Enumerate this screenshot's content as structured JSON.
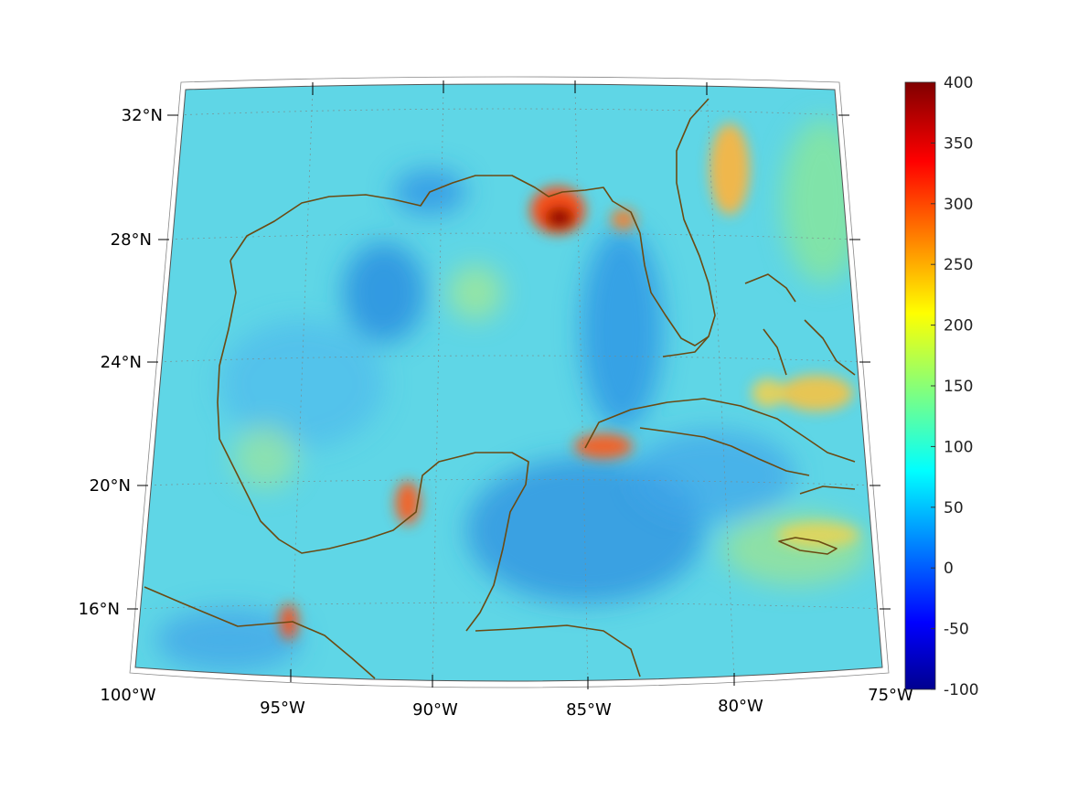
{
  "map": {
    "projection": "conic",
    "lon_range": [
      -100,
      -75
    ],
    "lat_range": [
      14,
      33
    ],
    "lat_ticks": [
      {
        "value": 32,
        "label": "32°N"
      },
      {
        "value": 28,
        "label": "28°N"
      },
      {
        "value": 24,
        "label": "24°N"
      },
      {
        "value": 20,
        "label": "20°N"
      },
      {
        "value": 16,
        "label": "16°N"
      }
    ],
    "lon_ticks": [
      {
        "value": -100,
        "label": "100°W"
      },
      {
        "value": -95,
        "label": "95°W"
      },
      {
        "value": -90,
        "label": "90°W"
      },
      {
        "value": -85,
        "label": "85°W"
      },
      {
        "value": -80,
        "label": "80°W"
      },
      {
        "value": -75,
        "label": "75°W"
      }
    ],
    "grid": true,
    "coastline_color": "#6b4a12",
    "field_background": "#5fd6e6"
  },
  "colorbar": {
    "min": -100,
    "max": 400,
    "colormap": "jet",
    "placement": "right",
    "ticks": [
      {
        "value": 400,
        "label": "400"
      },
      {
        "value": 350,
        "label": "350"
      },
      {
        "value": 300,
        "label": "300"
      },
      {
        "value": 250,
        "label": "250"
      },
      {
        "value": 200,
        "label": "200"
      },
      {
        "value": 150,
        "label": "150"
      },
      {
        "value": 100,
        "label": "100"
      },
      {
        "value": 50,
        "label": "50"
      },
      {
        "value": 0,
        "label": "0"
      },
      {
        "value": -50,
        "label": "-50"
      },
      {
        "value": -100,
        "label": "-100"
      }
    ]
  }
}
